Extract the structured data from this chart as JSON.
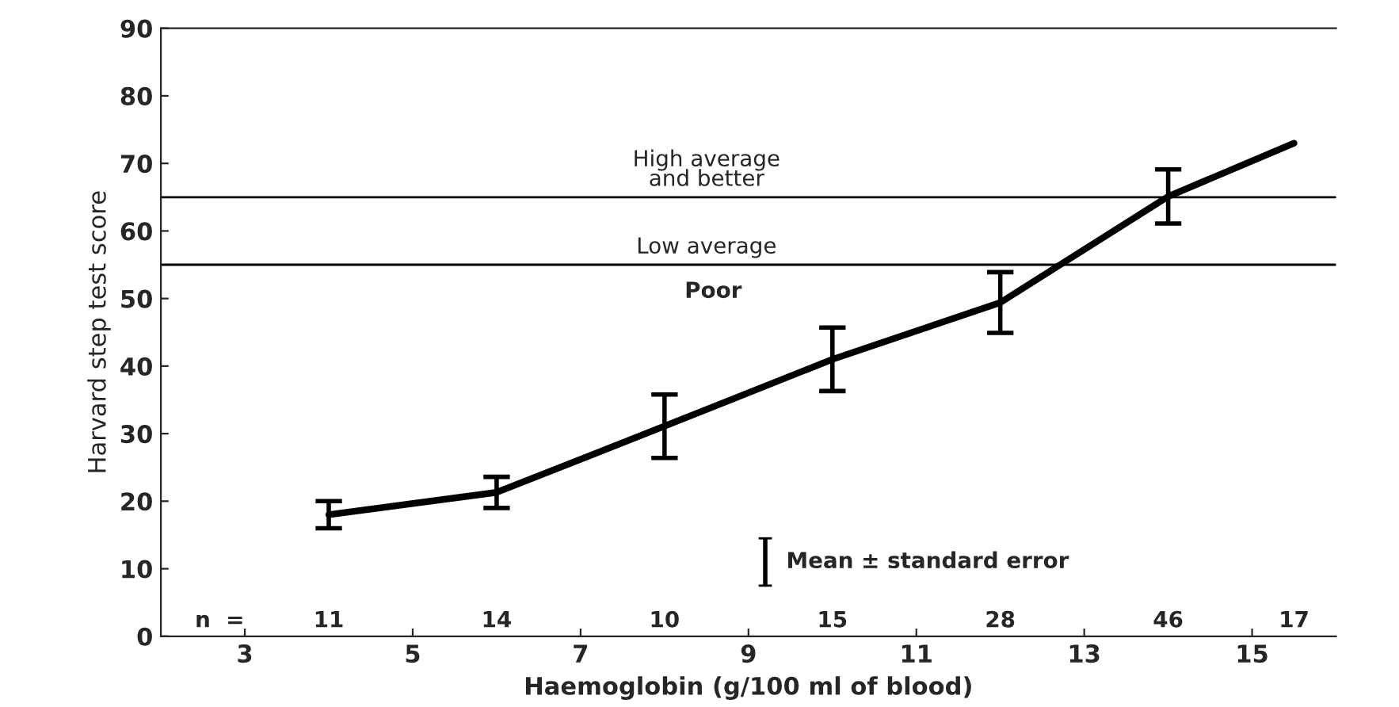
{
  "chart_data": {
    "type": "line",
    "xlabel": "Haemoglobin (g/100 ml of blood)",
    "ylabel": "Harvard step test score",
    "x": [
      4,
      6,
      8,
      10,
      12,
      14,
      15.5
    ],
    "series": [
      {
        "color": "#000000",
        "values": [
          18,
          21.3,
          31.1,
          41,
          49.4,
          65.1,
          73
        ],
        "errors": [
          2,
          2.3,
          4.7,
          4.7,
          4.5,
          4,
          null
        ]
      }
    ],
    "xlim": [
      2,
      16
    ],
    "xticks": [
      3,
      5,
      7,
      9,
      11,
      13,
      15
    ],
    "ylim": [
      0,
      90
    ],
    "yticks": [
      0,
      10,
      20,
      30,
      40,
      50,
      60,
      70,
      80,
      90
    ],
    "ref_lines": [
      {
        "axis": "y",
        "value": 65,
        "label": "High average\nand better"
      },
      {
        "axis": "y",
        "value": 55,
        "label": "Low average"
      }
    ],
    "annotations": [
      "Poor",
      "n  =",
      "11",
      "14",
      "10",
      "15",
      "28",
      "46",
      "17",
      "Mean ± standard error"
    ],
    "grid": false,
    "marker": "none",
    "line_style": "solid"
  }
}
